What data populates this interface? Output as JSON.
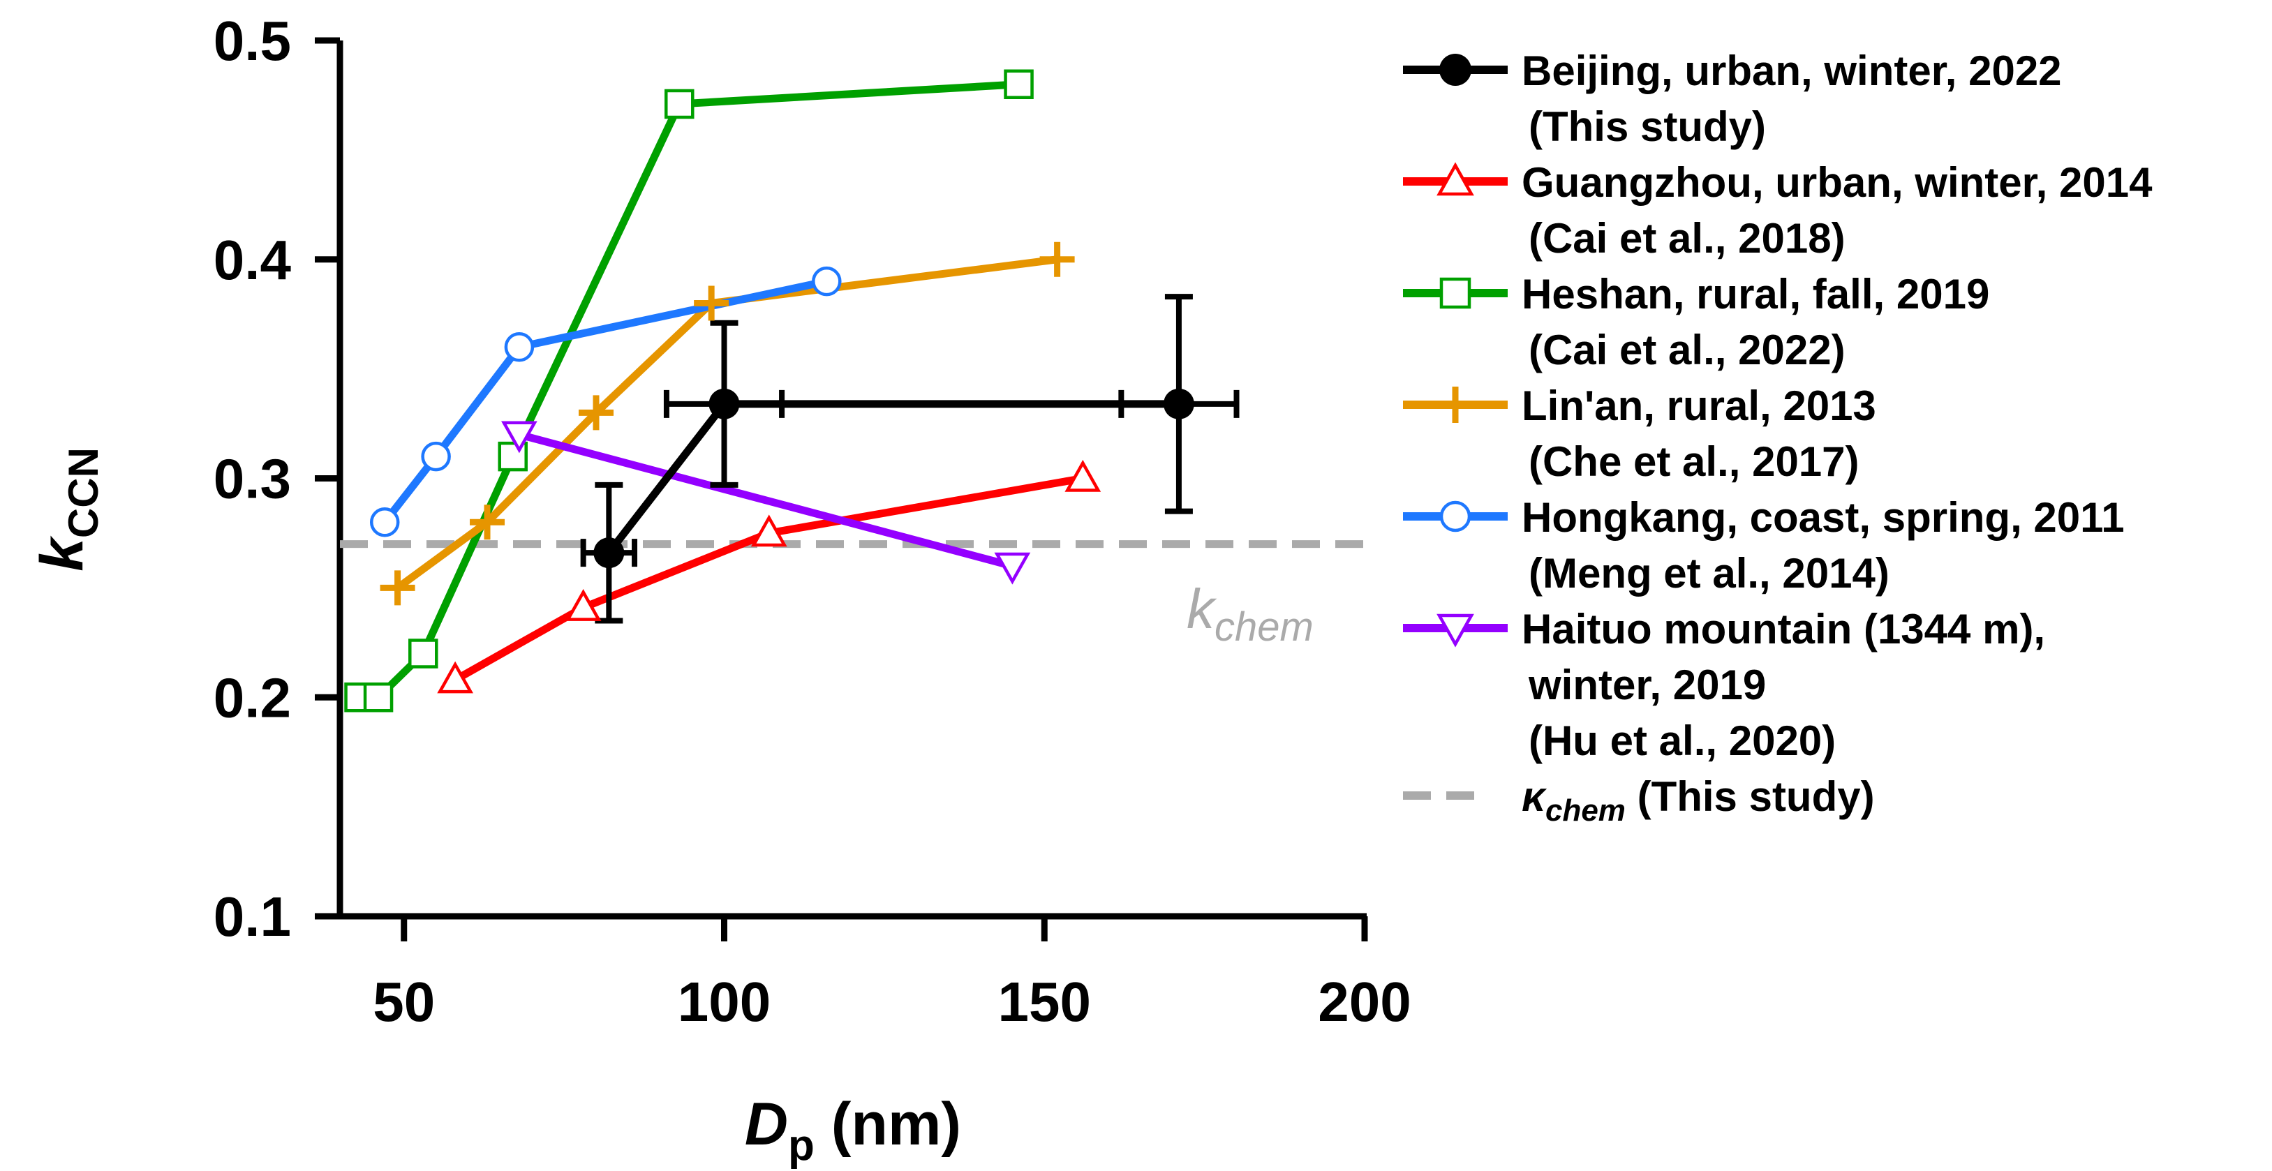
{
  "chart_data": {
    "type": "line",
    "xlabel": "D",
    "xlabel_sub": "p",
    "xlabel_unit": "(nm)",
    "ylabel": "k",
    "ylabel_sub": "CCN",
    "xlim": [
      40,
      200
    ],
    "ylim": [
      0.1,
      0.5
    ],
    "xticks": [
      50,
      100,
      150,
      200
    ],
    "yticks": [
      0.1,
      0.2,
      0.3,
      0.4,
      0.5
    ],
    "xtick_labels": [
      "50",
      "100",
      "150",
      "200"
    ],
    "ytick_labels": [
      "0.1",
      "0.2",
      "0.3",
      "0.4",
      "0.5"
    ],
    "legend_position": "right",
    "series": [
      {
        "name": "Beijing, urban, winter, 2022",
        "ref": "(This study)",
        "color": "#000000",
        "marker": "filled-circle",
        "points": [
          {
            "x": 82,
            "y": 0.266,
            "xerr": 4,
            "yerr": 0.031
          },
          {
            "x": 100,
            "y": 0.334,
            "xerr": 9,
            "yerr": 0.037
          },
          {
            "x": 171,
            "y": 0.334,
            "xerr": 9,
            "yerr": 0.049
          }
        ]
      },
      {
        "name": "Guangzhou, urban, winter, 2014",
        "ref": "(Cai et al., 2018)",
        "color": "#ff0000",
        "marker": "triangle-up",
        "points": [
          {
            "x": 58,
            "y": 0.208
          },
          {
            "x": 78,
            "y": 0.241
          },
          {
            "x": 107,
            "y": 0.275
          },
          {
            "x": 156,
            "y": 0.3
          }
        ]
      },
      {
        "name": "Heshan, rural, fall, 2019",
        "ref": "(Cai et al., 2022)",
        "color": "#00a000",
        "marker": "square",
        "points": [
          {
            "x": 43,
            "y": 0.2
          },
          {
            "x": 46,
            "y": 0.2
          },
          {
            "x": 53,
            "y": 0.22
          },
          {
            "x": 67,
            "y": 0.31
          },
          {
            "x": 93,
            "y": 0.471
          },
          {
            "x": 146,
            "y": 0.48
          }
        ]
      },
      {
        "name": "Lin'an, rural, 2013",
        "ref": "(Che et al., 2017)",
        "color": "#e69500",
        "marker": "plus",
        "points": [
          {
            "x": 49,
            "y": 0.25
          },
          {
            "x": 63,
            "y": 0.28
          },
          {
            "x": 80,
            "y": 0.33
          },
          {
            "x": 98,
            "y": 0.38
          },
          {
            "x": 152,
            "y": 0.4
          }
        ]
      },
      {
        "name": "Hongkang, coast, spring, 2011",
        "ref": "(Meng et al., 2014)",
        "color": "#1e78ff",
        "marker": "circle",
        "points": [
          {
            "x": 47,
            "y": 0.28
          },
          {
            "x": 55,
            "y": 0.31
          },
          {
            "x": 68,
            "y": 0.36
          },
          {
            "x": 116,
            "y": 0.39
          }
        ]
      },
      {
        "name": "Haituo mountain (1344 m),",
        "name2": "winter, 2019",
        "ref": "(Hu et al., 2020)",
        "color": "#9400ff",
        "marker": "triangle-down",
        "points": [
          {
            "x": 68,
            "y": 0.32
          },
          {
            "x": 145,
            "y": 0.26
          }
        ]
      }
    ],
    "reference_line": {
      "y": 0.27,
      "color": "#aaaaaa",
      "style": "dashed",
      "label": "k",
      "label_sub": "chem",
      "legend_symbol": "κ",
      "legend_sub": "chem",
      "legend_rest": " (This study)"
    }
  }
}
